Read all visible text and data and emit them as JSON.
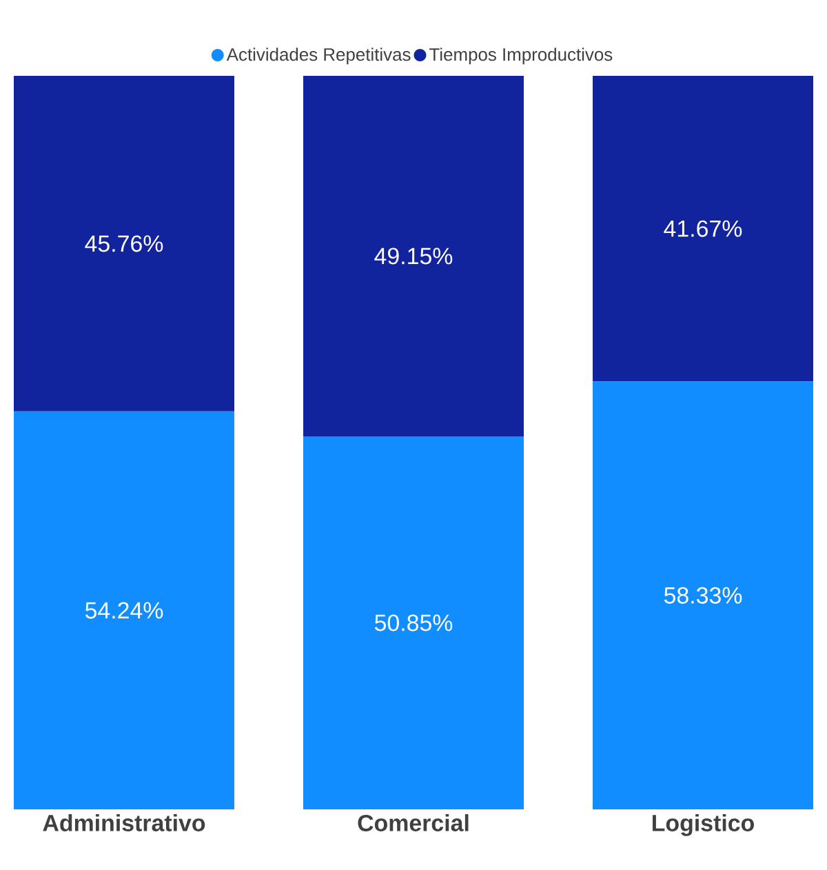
{
  "chart_data": {
    "type": "bar",
    "stacked": true,
    "legend": "top",
    "tick_labels": "x",
    "categories": [
      "Administrativo",
      "Comercial",
      "Logistico"
    ],
    "series": [
      {
        "name": "Actividades Repetitivas",
        "color": "#118dff",
        "values": [
          54.24,
          50.85,
          58.33
        ],
        "value_labels": [
          "54.24%",
          "50.85%",
          "58.33%"
        ]
      },
      {
        "name": "Tiempos Improductivos",
        "color": "#12239e",
        "values": [
          45.76,
          49.15,
          41.67
        ],
        "value_labels": [
          "45.76%",
          "49.15%",
          "41.67%"
        ]
      }
    ]
  }
}
